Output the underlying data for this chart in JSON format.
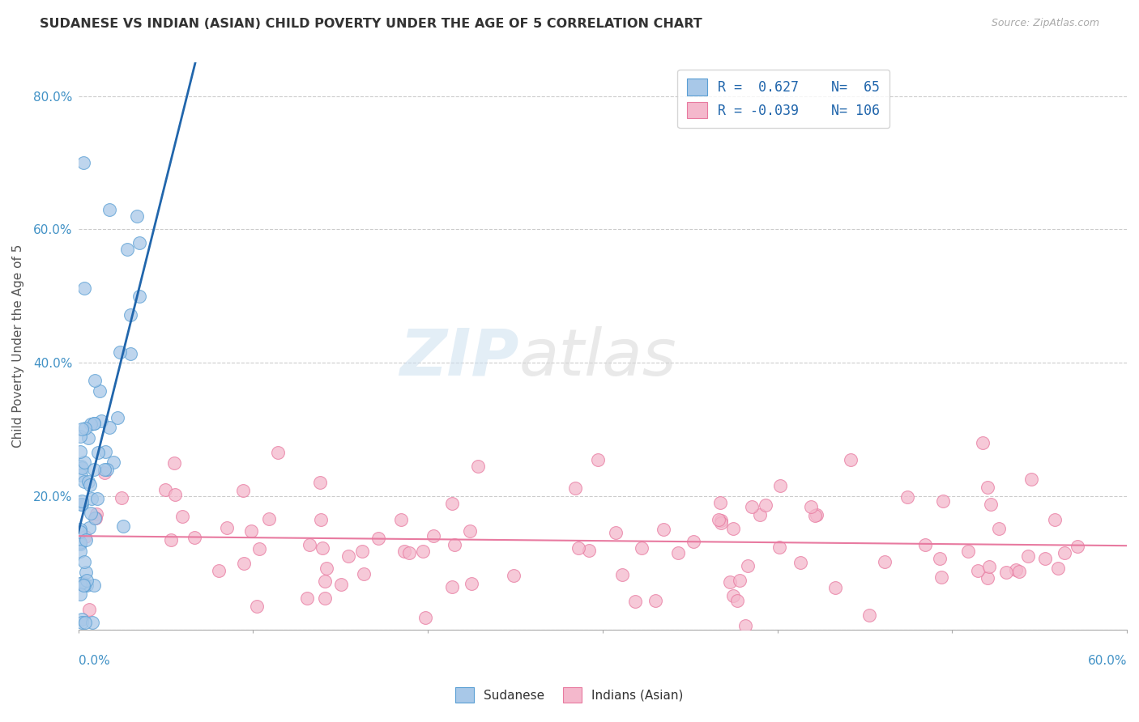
{
  "title": "SUDANESE VS INDIAN (ASIAN) CHILD POVERTY UNDER THE AGE OF 5 CORRELATION CHART",
  "source": "Source: ZipAtlas.com",
  "ylabel": "Child Poverty Under the Age of 5",
  "watermark_zip": "ZIP",
  "watermark_atlas": "atlas",
  "sudanese_color": "#a8c8e8",
  "sudanese_edge": "#5a9fd4",
  "indian_color": "#f4b8cc",
  "indian_edge": "#e87aa0",
  "line_blue": "#2166ac",
  "line_pink": "#e87aa0",
  "xlim": [
    0.0,
    0.6
  ],
  "ylim": [
    0.0,
    0.85
  ]
}
